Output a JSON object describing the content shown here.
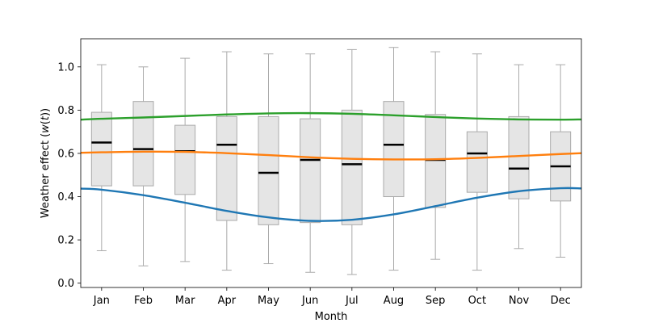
{
  "chart_data": {
    "type": "box",
    "xlabel": "Month",
    "ylabel": "Weather effect (w(t))",
    "ylim": [
      -0.02,
      1.13
    ],
    "y_ticks": [
      "0.0",
      "0.2",
      "0.4",
      "0.6",
      "0.8",
      "1.0"
    ],
    "y_tick_values": [
      0.0,
      0.2,
      0.4,
      0.6,
      0.8,
      1.0
    ],
    "categories": [
      "Jan",
      "Feb",
      "Mar",
      "Apr",
      "May",
      "Jun",
      "Jul",
      "Aug",
      "Sep",
      "Oct",
      "Nov",
      "Dec"
    ],
    "boxes": [
      {
        "whisker_low": 0.15,
        "q1": 0.45,
        "median": 0.65,
        "q3": 0.79,
        "whisker_high": 1.01
      },
      {
        "whisker_low": 0.08,
        "q1": 0.45,
        "median": 0.62,
        "q3": 0.84,
        "whisker_high": 1.0
      },
      {
        "whisker_low": 0.1,
        "q1": 0.41,
        "median": 0.61,
        "q3": 0.73,
        "whisker_high": 1.04
      },
      {
        "whisker_low": 0.06,
        "q1": 0.29,
        "median": 0.64,
        "q3": 0.77,
        "whisker_high": 1.07
      },
      {
        "whisker_low": 0.09,
        "q1": 0.27,
        "median": 0.51,
        "q3": 0.77,
        "whisker_high": 1.06
      },
      {
        "whisker_low": 0.05,
        "q1": 0.28,
        "median": 0.57,
        "q3": 0.76,
        "whisker_high": 1.06
      },
      {
        "whisker_low": 0.04,
        "q1": 0.27,
        "median": 0.55,
        "q3": 0.8,
        "whisker_high": 1.08
      },
      {
        "whisker_low": 0.06,
        "q1": 0.4,
        "median": 0.64,
        "q3": 0.84,
        "whisker_high": 1.09
      },
      {
        "whisker_low": 0.11,
        "q1": 0.35,
        "median": 0.57,
        "q3": 0.78,
        "whisker_high": 1.07
      },
      {
        "whisker_low": 0.06,
        "q1": 0.42,
        "median": 0.6,
        "q3": 0.7,
        "whisker_high": 1.06
      },
      {
        "whisker_low": 0.16,
        "q1": 0.39,
        "median": 0.53,
        "q3": 0.77,
        "whisker_high": 1.01
      },
      {
        "whisker_low": 0.12,
        "q1": 0.38,
        "median": 0.54,
        "q3": 0.7,
        "whisker_high": 1.01
      }
    ],
    "series": [
      {
        "color": "#2ca02c",
        "x": [
          0.5,
          1,
          2,
          3,
          4,
          5,
          6,
          7,
          8,
          9,
          10,
          11,
          12,
          12.5
        ],
        "values": [
          0.756,
          0.76,
          0.766,
          0.773,
          0.78,
          0.785,
          0.786,
          0.783,
          0.776,
          0.768,
          0.761,
          0.757,
          0.756,
          0.757
        ]
      },
      {
        "color": "#ff7f0e",
        "x": [
          0.5,
          1,
          2,
          3,
          4,
          5,
          6,
          7,
          8,
          9,
          10,
          11,
          12,
          12.5
        ],
        "values": [
          0.603,
          0.605,
          0.608,
          0.607,
          0.601,
          0.592,
          0.582,
          0.575,
          0.572,
          0.573,
          0.579,
          0.588,
          0.597,
          0.601
        ]
      },
      {
        "color": "#1f77b4",
        "x": [
          0.5,
          1,
          2,
          3,
          4,
          5,
          6,
          7,
          8,
          9,
          10,
          11,
          12,
          12.5
        ],
        "values": [
          0.437,
          0.432,
          0.407,
          0.372,
          0.334,
          0.304,
          0.288,
          0.293,
          0.318,
          0.356,
          0.395,
          0.425,
          0.439,
          0.438
        ]
      }
    ],
    "grid": false,
    "legend": false
  }
}
